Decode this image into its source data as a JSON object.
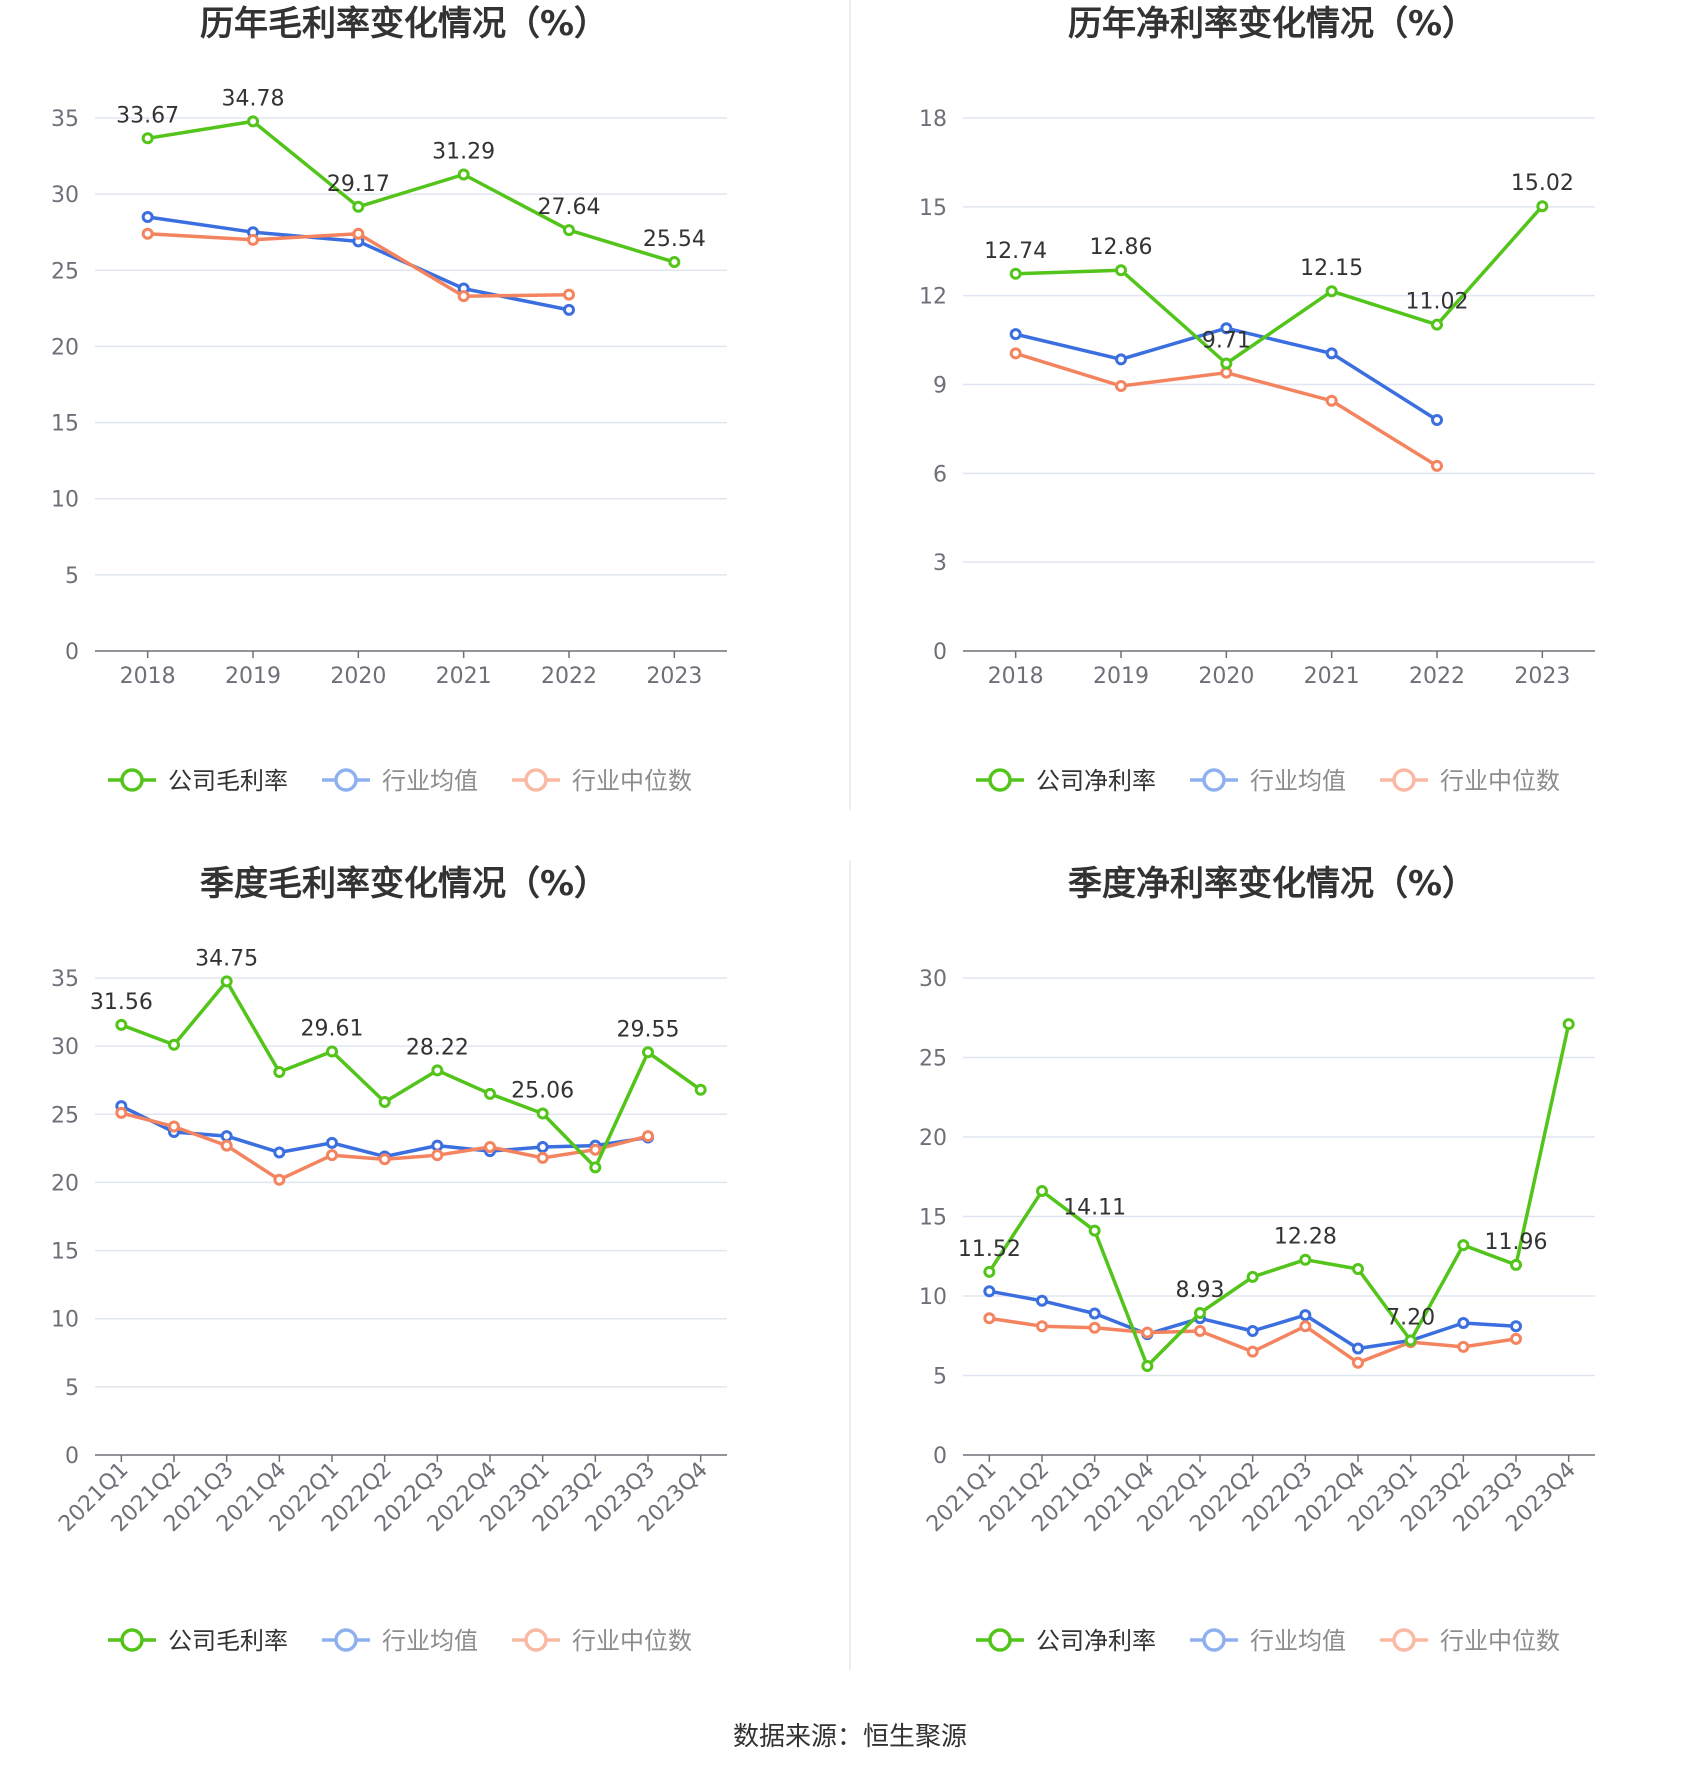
{
  "colors": {
    "company": "#52c41a",
    "average": "#3b6fe0",
    "median": "#f4845f",
    "average_legend": "#8fb0ef",
    "median_legend": "#f9b9a3"
  },
  "source_text": "数据来源：恒生聚源",
  "chart_data": [
    {
      "type": "line",
      "title": "历年毛利率变化情况（%）",
      "categories": [
        "2018",
        "2019",
        "2020",
        "2021",
        "2022",
        "2023"
      ],
      "ylim": [
        0,
        35
      ],
      "yticks": [
        0,
        5,
        10,
        15,
        20,
        25,
        30,
        35
      ],
      "rotate_x_labels": false,
      "grid": true,
      "legend_position": "bottom",
      "series": [
        {
          "name": "公司毛利率",
          "role": "company",
          "values": [
            33.67,
            34.78,
            29.17,
            31.29,
            27.64,
            25.54
          ]
        },
        {
          "name": "行业均值",
          "role": "average",
          "values": [
            28.5,
            27.5,
            26.9,
            23.8,
            22.4,
            null
          ]
        },
        {
          "name": "行业中位数",
          "role": "median",
          "values": [
            27.4,
            27.0,
            27.4,
            23.3,
            23.4,
            null
          ]
        }
      ],
      "data_labels": [
        {
          "index": 0,
          "text": "33.67"
        },
        {
          "index": 1,
          "text": "34.78"
        },
        {
          "index": 2,
          "text": "29.17"
        },
        {
          "index": 3,
          "text": "31.29"
        },
        {
          "index": 4,
          "text": "27.64"
        },
        {
          "index": 5,
          "text": "25.54"
        }
      ]
    },
    {
      "type": "line",
      "title": "历年净利率变化情况（%）",
      "categories": [
        "2018",
        "2019",
        "2020",
        "2021",
        "2022",
        "2023"
      ],
      "ylim": [
        0,
        18
      ],
      "yticks": [
        0,
        3,
        6,
        9,
        12,
        15,
        18
      ],
      "rotate_x_labels": false,
      "grid": true,
      "legend_position": "bottom",
      "series": [
        {
          "name": "公司净利率",
          "role": "company",
          "values": [
            12.74,
            12.86,
            9.71,
            12.15,
            11.02,
            15.02
          ]
        },
        {
          "name": "行业均值",
          "role": "average",
          "values": [
            10.7,
            9.85,
            10.9,
            10.05,
            7.8,
            null
          ]
        },
        {
          "name": "行业中位数",
          "role": "median",
          "values": [
            10.05,
            8.95,
            9.4,
            8.45,
            6.25,
            null
          ]
        }
      ],
      "data_labels": [
        {
          "index": 0,
          "text": "12.74"
        },
        {
          "index": 1,
          "text": "12.86"
        },
        {
          "index": 2,
          "text": "9.71"
        },
        {
          "index": 3,
          "text": "12.15"
        },
        {
          "index": 4,
          "text": "11.02"
        },
        {
          "index": 5,
          "text": "15.02"
        }
      ]
    },
    {
      "type": "line",
      "title": "季度毛利率变化情况（%）",
      "categories": [
        "2021Q1",
        "2021Q2",
        "2021Q3",
        "2021Q4",
        "2022Q1",
        "2022Q2",
        "2022Q3",
        "2022Q4",
        "2023Q1",
        "2023Q2",
        "2023Q3",
        "2023Q4"
      ],
      "ylim": [
        0,
        35
      ],
      "yticks": [
        0,
        5,
        10,
        15,
        20,
        25,
        30,
        35
      ],
      "rotate_x_labels": true,
      "grid": true,
      "legend_position": "bottom",
      "series": [
        {
          "name": "公司毛利率",
          "role": "company",
          "values": [
            31.56,
            30.1,
            34.75,
            28.1,
            29.61,
            25.9,
            28.22,
            26.5,
            25.06,
            21.1,
            29.55,
            26.8
          ]
        },
        {
          "name": "行业均值",
          "role": "average",
          "values": [
            25.6,
            23.7,
            23.4,
            22.2,
            22.9,
            21.9,
            22.7,
            22.3,
            22.6,
            22.7,
            23.3,
            null
          ]
        },
        {
          "name": "行业中位数",
          "role": "median",
          "values": [
            25.1,
            24.1,
            22.7,
            20.2,
            22.0,
            21.7,
            22.0,
            22.6,
            21.8,
            22.4,
            23.4,
            null
          ]
        }
      ],
      "data_labels": [
        {
          "index": 0,
          "text": "31.56"
        },
        {
          "index": 2,
          "text": "34.75"
        },
        {
          "index": 4,
          "text": "29.61"
        },
        {
          "index": 6,
          "text": "28.22"
        },
        {
          "index": 8,
          "text": "25.06"
        },
        {
          "index": 10,
          "text": "29.55"
        }
      ]
    },
    {
      "type": "line",
      "title": "季度净利率变化情况（%）",
      "categories": [
        "2021Q1",
        "2021Q2",
        "2021Q3",
        "2021Q4",
        "2022Q1",
        "2022Q2",
        "2022Q3",
        "2022Q4",
        "2023Q1",
        "2023Q2",
        "2023Q3",
        "2023Q4"
      ],
      "ylim": [
        0,
        30
      ],
      "yticks": [
        0,
        5,
        10,
        15,
        20,
        25,
        30
      ],
      "rotate_x_labels": true,
      "grid": true,
      "legend_position": "bottom",
      "series": [
        {
          "name": "公司净利率",
          "role": "company",
          "values": [
            11.52,
            16.6,
            14.11,
            5.6,
            8.93,
            11.2,
            12.28,
            11.7,
            7.2,
            13.2,
            11.96,
            27.1
          ]
        },
        {
          "name": "行业均值",
          "role": "average",
          "values": [
            10.3,
            9.7,
            8.9,
            7.6,
            8.6,
            7.8,
            8.8,
            6.7,
            7.2,
            8.3,
            8.1,
            null
          ]
        },
        {
          "name": "行业中位数",
          "role": "median",
          "values": [
            8.6,
            8.1,
            8.0,
            7.7,
            7.8,
            6.5,
            8.1,
            5.8,
            7.1,
            6.8,
            7.3,
            null
          ]
        }
      ],
      "data_labels": [
        {
          "index": 0,
          "text": "11.52"
        },
        {
          "index": 2,
          "text": "14.11"
        },
        {
          "index": 4,
          "text": "8.93"
        },
        {
          "index": 6,
          "text": "12.28"
        },
        {
          "index": 8,
          "text": "7.20"
        },
        {
          "index": 10,
          "text": "11.96"
        }
      ]
    }
  ]
}
